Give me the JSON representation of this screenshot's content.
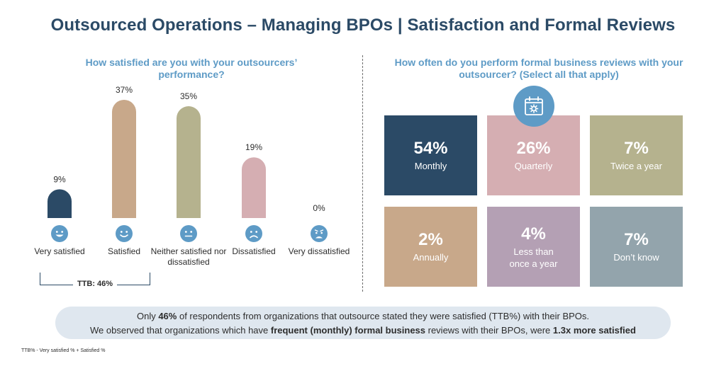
{
  "title": "Outsourced Operations – Managing BPOs | Satisfaction and Formal Reviews",
  "left_question": "How satisfied are you with your outsourcers’ performance?",
  "right_question": "How often do you perform formal business reviews with your outsourcer? (Select all that apply)",
  "chart_data": [
    {
      "type": "bar",
      "title": "How satisfied are you with your outsourcers’ performance?",
      "categories": [
        "Very satisfied",
        "Satisfied",
        "Neither satisfied nor dissatisfied",
        "Dissatisfied",
        "Very dissatisfied"
      ],
      "values": [
        9,
        37,
        35,
        19,
        0
      ],
      "value_labels": [
        "9%",
        "37%",
        "35%",
        "19%",
        "0%"
      ],
      "colors": [
        "#2b4a66",
        "#c8a88a",
        "#b5b28e",
        "#d5aeb2",
        "#c9c9c9"
      ],
      "ylim": [
        0,
        37
      ],
      "xlabel": "",
      "ylabel": "",
      "grid": false
    },
    {
      "type": "table",
      "title": "How often do you perform formal business reviews with your outsourcer? (Select all that apply)",
      "categories": [
        "Monthly",
        "Quarterly",
        "Twice a year",
        "Annually",
        "Less than once a year",
        "Don’t know"
      ],
      "values": [
        54,
        26,
        7,
        2,
        4,
        7
      ]
    }
  ],
  "faces": [
    "very-satisfied-face-icon",
    "satisfied-face-icon",
    "neutral-face-icon",
    "dissatisfied-face-icon",
    "very-dissatisfied-face-icon"
  ],
  "face_color": "#5e9bc6",
  "ttb_label": "TTB: 46%",
  "tiles": [
    {
      "pct": "54%",
      "label": "Monthly",
      "color": "#2b4a66"
    },
    {
      "pct": "26%",
      "label": "Quarterly",
      "color": "#d5aeb2"
    },
    {
      "pct": "7%",
      "label": "Twice a year",
      "color": "#b5b28e"
    },
    {
      "pct": "2%",
      "label": "Annually",
      "color": "#c8a88a"
    },
    {
      "pct": "4%",
      "label": "Less than once a year",
      "label_line1": "Less than",
      "label_line2": "once a year",
      "color": "#b4a0b4"
    },
    {
      "pct": "7%",
      "label": "Don’t know",
      "color": "#93a4ac"
    }
  ],
  "calendar_icon": "calendar-gear-icon",
  "callout": {
    "line1_pre": "Only ",
    "line1_bold": "46%",
    "line1_post": " of respondents from organizations that outsource stated they were satisfied (TTB%) with their BPOs.",
    "line2_pre": "We observed that organizations which have ",
    "line2_bold": "frequent (monthly) formal business",
    "line2_mid": " reviews with their BPOs, were ",
    "line2_bold2": "1.3x more satisfied"
  },
  "footnote": "TTB% - Very satisfied % + Satisfied %"
}
